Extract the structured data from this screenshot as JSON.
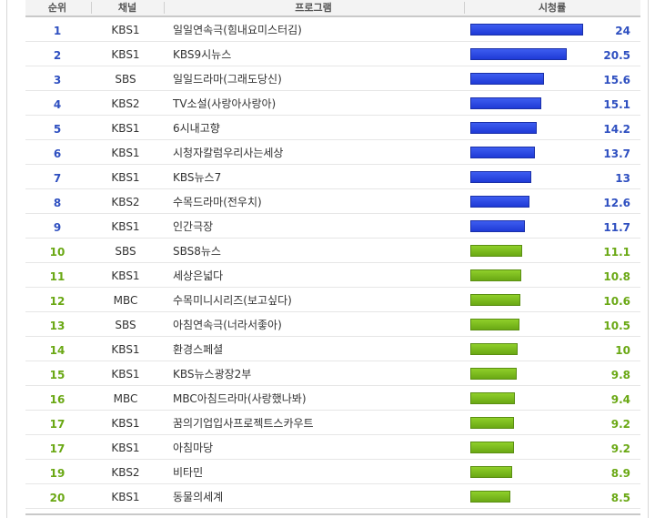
{
  "headers": {
    "rank": "순위",
    "channel": "채널",
    "program": "프로그램",
    "rating": "시청률"
  },
  "chart_data": {
    "type": "bar",
    "orientation": "horizontal",
    "title": "",
    "ylabel": "시청률",
    "xlim": [
      0,
      24
    ],
    "colors": {
      "top": "#2a47e0",
      "rest": "#7bbd1e"
    },
    "rows": [
      {
        "rank": "1",
        "channel": "KBS1",
        "program": "일일연속극(힘내요미스터김)",
        "value": "24"
      },
      {
        "rank": "2",
        "channel": "KBS1",
        "program": "KBS9시뉴스",
        "value": "20.5"
      },
      {
        "rank": "3",
        "channel": "SBS",
        "program": "일일드라마(그래도당신)",
        "value": "15.6"
      },
      {
        "rank": "4",
        "channel": "KBS2",
        "program": "TV소설(사랑아사랑아)",
        "value": "15.1"
      },
      {
        "rank": "5",
        "channel": "KBS1",
        "program": "6시내고향",
        "value": "14.2"
      },
      {
        "rank": "6",
        "channel": "KBS1",
        "program": "시청자칼럼우리사는세상",
        "value": "13.7"
      },
      {
        "rank": "7",
        "channel": "KBS1",
        "program": "KBS뉴스7",
        "value": "13"
      },
      {
        "rank": "8",
        "channel": "KBS2",
        "program": "수목드라마(전우치)",
        "value": "12.6"
      },
      {
        "rank": "9",
        "channel": "KBS1",
        "program": "인간극장",
        "value": "11.7"
      },
      {
        "rank": "10",
        "channel": "SBS",
        "program": "SBS8뉴스",
        "value": "11.1"
      },
      {
        "rank": "11",
        "channel": "KBS1",
        "program": "세상은넓다",
        "value": "10.8"
      },
      {
        "rank": "12",
        "channel": "MBC",
        "program": "수목미니시리즈(보고싶다)",
        "value": "10.6"
      },
      {
        "rank": "13",
        "channel": "SBS",
        "program": "아침연속극(너라서좋아)",
        "value": "10.5"
      },
      {
        "rank": "14",
        "channel": "KBS1",
        "program": "환경스페셜",
        "value": "10"
      },
      {
        "rank": "15",
        "channel": "KBS1",
        "program": "KBS뉴스광장2부",
        "value": "9.8"
      },
      {
        "rank": "16",
        "channel": "MBC",
        "program": "MBC아침드라마(사랑했나봐)",
        "value": "9.4"
      },
      {
        "rank": "17",
        "channel": "KBS1",
        "program": "꿈의기업입사프로젝트스카우트",
        "value": "9.2"
      },
      {
        "rank": "17",
        "channel": "KBS1",
        "program": "아침마당",
        "value": "9.2"
      },
      {
        "rank": "19",
        "channel": "KBS2",
        "program": "비타민",
        "value": "8.9"
      },
      {
        "rank": "20",
        "channel": "KBS1",
        "program": "동물의세계",
        "value": "8.5"
      }
    ]
  }
}
